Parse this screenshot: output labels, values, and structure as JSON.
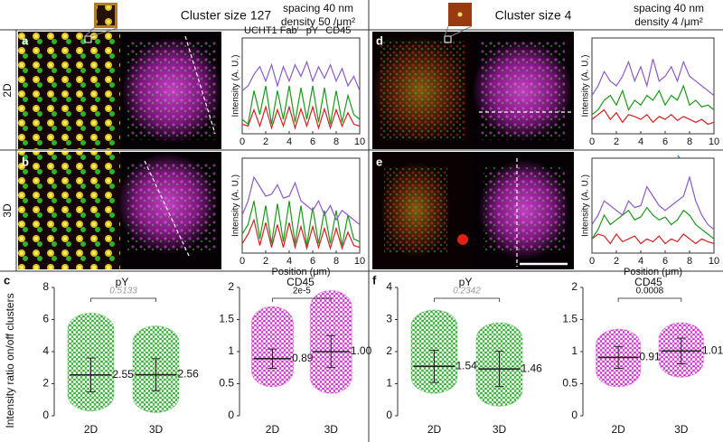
{
  "header": {
    "left": {
      "title": "Cluster size 127",
      "spacing": "spacing 40 nm",
      "density": "density 50 /μm²"
    },
    "right": {
      "title": "Cluster size 4",
      "spacing": "spacing 40 nm",
      "density": "density 4 /μm²"
    }
  },
  "row_labels": [
    "2D",
    "3D"
  ],
  "panel_labels": [
    "a",
    "b",
    "c",
    "d",
    "e",
    "f"
  ],
  "chart_data": [
    {
      "type": "line",
      "ylabel": "Intensity (A. U.)",
      "x": [
        0,
        0.5,
        1,
        1.5,
        2,
        2.5,
        3,
        3.5,
        4,
        4.5,
        5,
        5.5,
        6,
        6.5,
        7,
        7.5,
        8,
        8.5,
        9,
        9.5,
        10
      ],
      "xlim": [
        0,
        10
      ],
      "xticks": [
        0,
        2,
        4,
        6,
        8,
        10
      ],
      "ylim": [
        0,
        100
      ],
      "series": [
        {
          "name": "UCHT1 Fab'",
          "color": "#d62020",
          "values": [
            10,
            8,
            25,
            8,
            28,
            6,
            25,
            8,
            28,
            6,
            26,
            8,
            28,
            6,
            26,
            6,
            25,
            8,
            22,
            10,
            8
          ]
        },
        {
          "name": "pY",
          "color": "#1a9a1a",
          "values": [
            15,
            10,
            45,
            20,
            50,
            10,
            45,
            15,
            50,
            12,
            48,
            15,
            50,
            12,
            48,
            10,
            45,
            12,
            40,
            20,
            15
          ]
        },
        {
          "name": "CD45",
          "color": "#8a5ac8",
          "values": [
            45,
            50,
            62,
            70,
            55,
            72,
            50,
            70,
            55,
            72,
            60,
            75,
            55,
            70,
            58,
            72,
            55,
            68,
            50,
            60,
            45
          ]
        }
      ]
    },
    {
      "type": "line",
      "ylabel": "Intensity (A. U.)",
      "xlabel": "Position (μm)",
      "x": [
        0,
        0.5,
        1,
        1.5,
        2,
        2.5,
        3,
        3.5,
        4,
        4.5,
        5,
        5.5,
        6,
        6.5,
        7,
        7.5,
        8,
        8.5,
        9,
        9.5,
        10
      ],
      "xlim": [
        0,
        10
      ],
      "xticks": [
        0,
        2,
        4,
        6,
        8,
        10
      ],
      "ylim": [
        0,
        100
      ],
      "series": [
        {
          "color": "#d62020",
          "values": [
            10,
            20,
            35,
            8,
            32,
            6,
            30,
            6,
            32,
            6,
            28,
            5,
            28,
            6,
            26,
            5,
            26,
            5,
            22,
            8,
            6
          ]
        },
        {
          "color": "#1a9a1a",
          "values": [
            20,
            30,
            55,
            15,
            50,
            10,
            52,
            12,
            55,
            10,
            50,
            8,
            48,
            10,
            45,
            10,
            45,
            8,
            40,
            15,
            12
          ]
        },
        {
          "color": "#8a5ac8",
          "values": [
            40,
            55,
            80,
            70,
            60,
            62,
            72,
            58,
            60,
            74,
            55,
            50,
            45,
            55,
            40,
            50,
            35,
            45,
            40,
            35,
            30
          ]
        }
      ]
    },
    {
      "type": "line",
      "ylabel": "Intensity (A. U.)",
      "x": [
        0,
        0.5,
        1,
        1.5,
        2,
        2.5,
        3,
        3.5,
        4,
        4.5,
        5,
        5.5,
        6,
        6.5,
        7,
        7.5,
        8,
        8.5,
        9,
        9.5,
        10
      ],
      "xlim": [
        0,
        10
      ],
      "xticks": [
        0,
        2,
        4,
        6,
        8,
        10
      ],
      "ylim": [
        0,
        100
      ],
      "series": [
        {
          "color": "#d62020",
          "values": [
            15,
            20,
            25,
            15,
            22,
            12,
            20,
            18,
            15,
            20,
            12,
            18,
            15,
            20,
            14,
            18,
            15,
            12,
            15,
            10,
            12
          ]
        },
        {
          "color": "#1a9a1a",
          "values": [
            20,
            25,
            35,
            40,
            30,
            45,
            25,
            35,
            30,
            40,
            35,
            45,
            30,
            40,
            35,
            50,
            30,
            35,
            28,
            30,
            25
          ]
        },
        {
          "color": "#8a5ac8",
          "values": [
            40,
            50,
            65,
            55,
            50,
            60,
            75,
            55,
            70,
            50,
            78,
            55,
            60,
            70,
            55,
            75,
            60,
            55,
            50,
            45,
            40
          ]
        }
      ]
    },
    {
      "type": "line",
      "ylabel": "Intensity (A. U.)",
      "xlabel": "Position (μm)",
      "x": [
        0,
        0.5,
        1,
        1.5,
        2,
        2.5,
        3,
        3.5,
        4,
        4.5,
        5,
        5.5,
        6,
        6.5,
        7,
        7.5,
        8,
        8.5,
        9,
        9.5,
        10
      ],
      "xlim": [
        0,
        10
      ],
      "xticks": [
        0,
        2,
        4,
        6,
        8,
        10
      ],
      "ylim": [
        0,
        100
      ],
      "series": [
        {
          "color": "#d62020",
          "values": [
            15,
            20,
            18,
            10,
            20,
            12,
            15,
            18,
            10,
            15,
            12,
            18,
            10,
            15,
            12,
            20,
            15,
            10,
            15,
            12,
            10
          ]
        },
        {
          "color": "#1a9a1a",
          "values": [
            15,
            25,
            40,
            30,
            35,
            40,
            45,
            35,
            38,
            48,
            40,
            35,
            38,
            30,
            35,
            45,
            40,
            30,
            25,
            20,
            15
          ]
        },
        {
          "color": "#8a5ac8",
          "values": [
            30,
            40,
            55,
            50,
            45,
            40,
            55,
            48,
            50,
            70,
            60,
            50,
            45,
            50,
            55,
            60,
            80,
            55,
            40,
            30,
            25
          ]
        }
      ]
    },
    {
      "type": "dot",
      "title": "pY",
      "ylabel": "Intensity ratio on/off clusters",
      "color": "#22aa22",
      "categories": [
        "2D",
        "3D"
      ],
      "values": [
        2.55,
        2.56
      ],
      "value_labels": [
        "2.55",
        "2.56"
      ],
      "sd": [
        1.05,
        1.0
      ],
      "range": [
        [
          0.3,
          6.4
        ],
        [
          0.2,
          5.6
        ]
      ],
      "p_value": "0.5133",
      "p_italic": true,
      "ylim": [
        0,
        8
      ],
      "yticks": [
        0,
        2,
        4,
        6,
        8
      ]
    },
    {
      "type": "dot",
      "title": "CD45",
      "color": "#cc22cc",
      "categories": [
        "2D",
        "3D"
      ],
      "values": [
        0.89,
        1.0
      ],
      "value_labels": [
        "0.89",
        "1.00"
      ],
      "sd": [
        0.15,
        0.25
      ],
      "range": [
        [
          0.45,
          1.7
        ],
        [
          0.35,
          1.95
        ]
      ],
      "p_value": "2e-5",
      "p_italic": false,
      "ylim": [
        0,
        2
      ],
      "yticks": [
        0,
        0.5,
        1,
        1.5,
        2
      ]
    },
    {
      "type": "dot",
      "title": "pY",
      "color": "#22aa22",
      "categories": [
        "2D",
        "3D"
      ],
      "values": [
        1.54,
        1.46
      ],
      "value_labels": [
        "1.54",
        "1.46"
      ],
      "sd": [
        0.5,
        0.55
      ],
      "range": [
        [
          0.7,
          3.3
        ],
        [
          0.3,
          2.9
        ]
      ],
      "p_value": "0.2342",
      "p_italic": true,
      "ylim": [
        0,
        4
      ],
      "yticks": [
        0,
        1,
        2,
        3,
        4
      ]
    },
    {
      "type": "dot",
      "title": "CD45",
      "color": "#cc22cc",
      "categories": [
        "2D",
        "3D"
      ],
      "values": [
        0.91,
        1.01
      ],
      "value_labels": [
        "0.91",
        "1.01"
      ],
      "sd": [
        0.17,
        0.2
      ],
      "range": [
        [
          0.45,
          1.35
        ],
        [
          0.6,
          1.45
        ]
      ],
      "p_value": "0.0008",
      "p_italic": false,
      "ylim": [
        0,
        2
      ],
      "yticks": [
        0,
        0.5,
        1,
        1.5,
        2
      ]
    }
  ]
}
